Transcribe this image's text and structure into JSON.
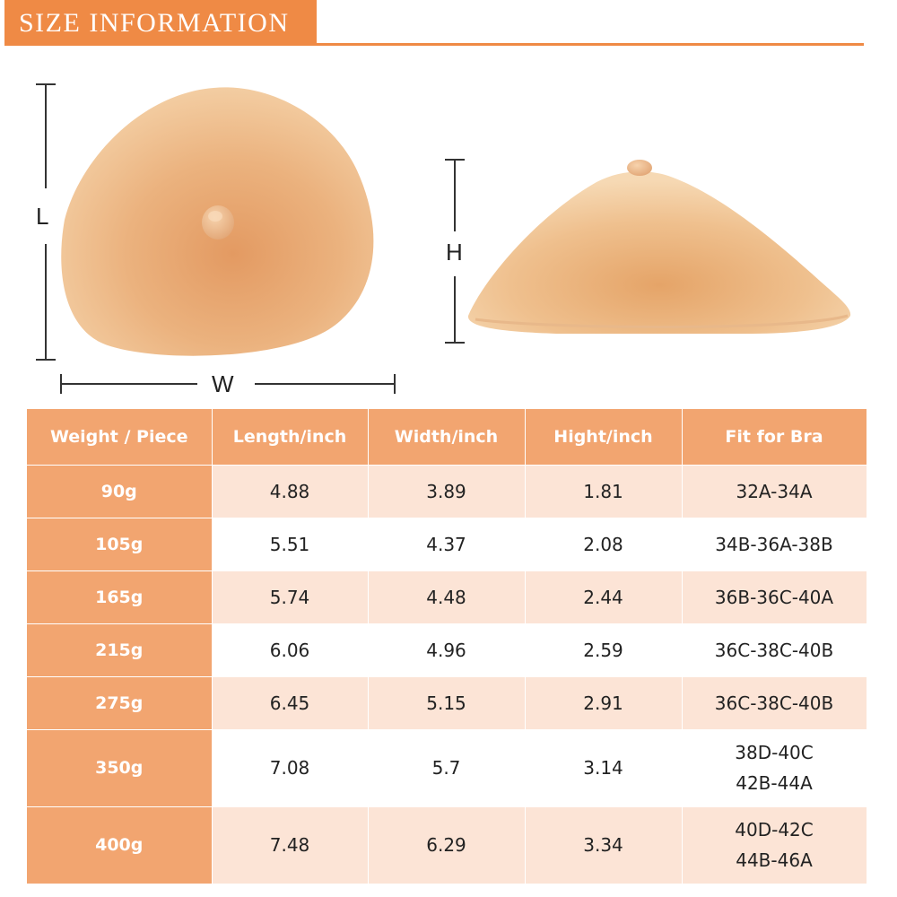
{
  "header": {
    "title": "SIZE INFORMATION"
  },
  "dimensions": {
    "length": "L",
    "width": "W",
    "height": "H"
  },
  "colors": {
    "accent": "#ef8a45",
    "header_cell": "#f2a570",
    "stripe": "#fce4d6",
    "skin": "#e9b383"
  },
  "table": {
    "headers": [
      "Weight / Piece",
      "Length/inch",
      "Width/inch",
      "Hight/inch",
      "Fit for Bra"
    ],
    "rows": [
      {
        "weight": "90g",
        "length": "4.88",
        "width": "3.89",
        "height": "1.81",
        "fit": [
          "32A-34A"
        ]
      },
      {
        "weight": "105g",
        "length": "5.51",
        "width": "4.37",
        "height": "2.08",
        "fit": [
          "34B-36A-38B"
        ]
      },
      {
        "weight": "165g",
        "length": "5.74",
        "width": "4.48",
        "height": "2.44",
        "fit": [
          "36B-36C-40A"
        ]
      },
      {
        "weight": "215g",
        "length": "6.06",
        "width": "4.96",
        "height": "2.59",
        "fit": [
          "36C-38C-40B"
        ]
      },
      {
        "weight": "275g",
        "length": "6.45",
        "width": "5.15",
        "height": "2.91",
        "fit": [
          "36C-38C-40B"
        ]
      },
      {
        "weight": "350g",
        "length": "7.08",
        "width": "5.7",
        "height": "3.14",
        "fit": [
          "38D-40C",
          "42B-44A"
        ]
      },
      {
        "weight": "400g",
        "length": "7.48",
        "width": "6.29",
        "height": "3.34",
        "fit": [
          "40D-42C",
          "44B-46A"
        ]
      }
    ]
  }
}
